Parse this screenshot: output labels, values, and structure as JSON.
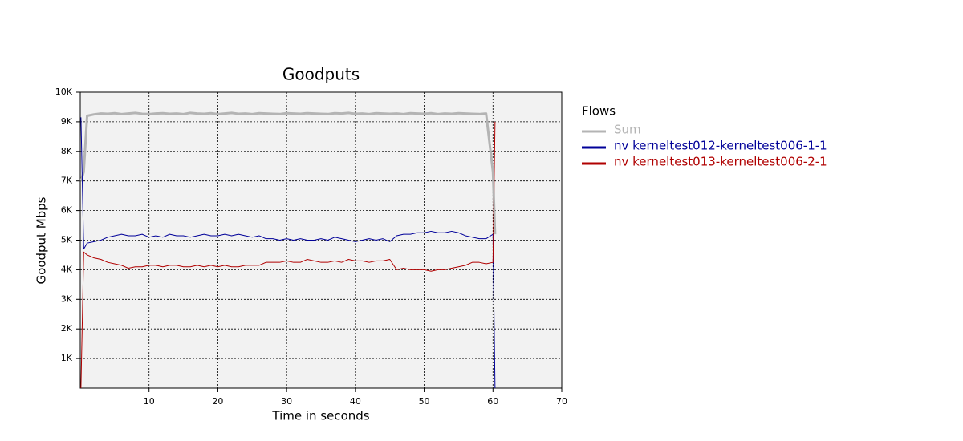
{
  "chart_data": {
    "type": "line",
    "title": "Goodputs",
    "x_label": "Time in seconds",
    "y_label": "Goodput Mbps",
    "legend_title": "Flows",
    "legend_position": "right-outside",
    "grid": true,
    "background": "#f2f2f2",
    "xlim": [
      0,
      70
    ],
    "xticks": [
      10,
      20,
      30,
      40,
      50,
      60,
      70
    ],
    "ylim": [
      0,
      10000
    ],
    "yticks": [
      {
        "value": 1000,
        "label": "1K"
      },
      {
        "value": 2000,
        "label": "2K"
      },
      {
        "value": 3000,
        "label": "3K"
      },
      {
        "value": 4000,
        "label": "4K"
      },
      {
        "value": 5000,
        "label": "5K"
      },
      {
        "value": 6000,
        "label": "6K"
      },
      {
        "value": 7000,
        "label": "7K"
      },
      {
        "value": 8000,
        "label": "8K"
      },
      {
        "value": 9000,
        "label": "9K"
      },
      {
        "value": 10000,
        "label": "10K"
      }
    ],
    "x": [
      0.1,
      0.5,
      1,
      2,
      3,
      4,
      5,
      6,
      7,
      8,
      9,
      10,
      11,
      12,
      13,
      14,
      15,
      16,
      17,
      18,
      19,
      20,
      21,
      22,
      23,
      24,
      25,
      26,
      27,
      28,
      29,
      30,
      31,
      32,
      33,
      34,
      35,
      36,
      37,
      38,
      39,
      40,
      41,
      42,
      43,
      44,
      45,
      46,
      47,
      48,
      49,
      50,
      51,
      52,
      53,
      54,
      55,
      56,
      57,
      58,
      59,
      60,
      60.3
    ],
    "series": [
      {
        "name": "Sum",
        "color": "#b4b4b4",
        "width": 3,
        "values": [
          7000,
          7300,
          9200,
          9250,
          9280,
          9270,
          9290,
          9260,
          9280,
          9300,
          9270,
          9260,
          9280,
          9290,
          9270,
          9280,
          9260,
          9300,
          9280,
          9270,
          9290,
          9260,
          9280,
          9300,
          9270,
          9280,
          9260,
          9290,
          9280,
          9270,
          9260,
          9290,
          9280,
          9270,
          9290,
          9280,
          9270,
          9260,
          9290,
          9280,
          9300,
          9270,
          9280,
          9260,
          9290,
          9280,
          9270,
          9280,
          9260,
          9290,
          9280,
          9270,
          9290,
          9260,
          9280,
          9270,
          9290,
          9280,
          9270,
          9260,
          9280,
          7300,
          5200
        ]
      },
      {
        "name": "nv kerneltest012-kerneltest006-1-1",
        "color": "#000099",
        "width": 1,
        "values": [
          9150,
          4700,
          4900,
          4950,
          5000,
          5100,
          5150,
          5200,
          5150,
          5150,
          5200,
          5100,
          5150,
          5100,
          5200,
          5150,
          5150,
          5100,
          5150,
          5200,
          5150,
          5150,
          5200,
          5150,
          5200,
          5150,
          5100,
          5150,
          5050,
          5050,
          5000,
          5050,
          5000,
          5050,
          5000,
          5000,
          5050,
          5000,
          5100,
          5050,
          5000,
          4950,
          5000,
          5050,
          5000,
          5050,
          4950,
          5150,
          5200,
          5200,
          5250,
          5250,
          5300,
          5250,
          5250,
          5300,
          5250,
          5150,
          5100,
          5050,
          5050,
          5200,
          0
        ]
      },
      {
        "name": "nv kerneltest013-kerneltest006-2-1",
        "color": "#b00000",
        "width": 1,
        "values": [
          0,
          4600,
          4500,
          4400,
          4350,
          4250,
          4200,
          4150,
          4050,
          4100,
          4100,
          4150,
          4150,
          4100,
          4150,
          4150,
          4100,
          4100,
          4150,
          4100,
          4150,
          4100,
          4150,
          4100,
          4100,
          4150,
          4150,
          4150,
          4250,
          4250,
          4250,
          4300,
          4250,
          4250,
          4350,
          4300,
          4250,
          4250,
          4300,
          4250,
          4350,
          4300,
          4300,
          4250,
          4300,
          4300,
          4350,
          4000,
          4050,
          4000,
          4000,
          4000,
          3950,
          4000,
          4000,
          4050,
          4100,
          4150,
          4250,
          4250,
          4200,
          4250,
          9000
        ]
      }
    ]
  }
}
